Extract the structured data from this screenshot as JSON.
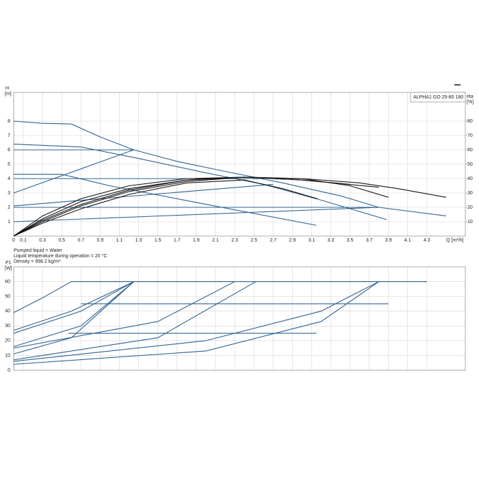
{
  "chart_data": [
    {
      "type": "line",
      "title": "ALPHA1 GO 25-80 180",
      "ylabel": "H",
      "yunit": "[m]",
      "y2label": "eta",
      "y2unit": "[%]",
      "xlabel": "Q [m³/h]",
      "xlim": [
        0,
        4.7
      ],
      "xticks": [
        0,
        0.1,
        0.3,
        0.5,
        0.7,
        0.9,
        1.1,
        1.3,
        1.5,
        1.7,
        1.9,
        2.1,
        2.3,
        2.5,
        2.7,
        2.9,
        3.1,
        3.3,
        3.5,
        3.7,
        3.9,
        4.1,
        4.3
      ],
      "ylim": [
        0,
        10
      ],
      "yticks": [
        1,
        2,
        3,
        4,
        5,
        6,
        7,
        8
      ],
      "y2lim": [
        0,
        100
      ],
      "y2ticks": [
        10,
        20,
        30,
        40,
        50,
        60,
        70,
        80
      ],
      "grid": true,
      "notes": [
        "Pumped liquid = Water",
        "Liquid temperature during operation = 20 °C",
        "Density = 998.2 kg/m³"
      ],
      "series": [
        {
          "color": "#2b5f8f",
          "x": [
            0,
            0.3,
            0.6,
            0.9,
            1.25,
            1.7,
            2.2,
            2.8,
            3.4,
            3.8,
            4.5
          ],
          "values": [
            8,
            7.85,
            7.8,
            6.9,
            6.0,
            5.2,
            4.5,
            3.7,
            2.8,
            2.0,
            1.4
          ]
        },
        {
          "color": "#2b5f8f",
          "x": [
            0,
            0.7,
            1.3,
            2.0,
            2.6,
            3.2,
            3.88
          ],
          "values": [
            6.4,
            6.2,
            5.4,
            4.4,
            3.6,
            2.5,
            1.15
          ]
        },
        {
          "color": "#2b5f8f",
          "x": [
            0,
            0.5,
            1.0,
            1.7,
            2.4,
            3.15
          ],
          "values": [
            4.3,
            4.3,
            3.5,
            2.6,
            1.7,
            0.75
          ]
        },
        {
          "color": "#2b5f8f",
          "x": [
            0,
            1.25
          ],
          "values": [
            6,
            6
          ]
        },
        {
          "color": "#2b5f8f",
          "x": [
            0,
            1.25
          ],
          "values": [
            3,
            6
          ]
        },
        {
          "color": "#2b5f8f",
          "x": [
            0,
            2.6
          ],
          "values": [
            4,
            4
          ]
        },
        {
          "color": "#2b5f8f",
          "x": [
            0,
            2.7
          ],
          "values": [
            2.1,
            3.6
          ]
        },
        {
          "color": "#2b5f8f",
          "x": [
            0,
            3.8
          ],
          "values": [
            2,
            2
          ]
        },
        {
          "color": "#2b5f8f",
          "x": [
            0,
            3.8
          ],
          "values": [
            1,
            2
          ]
        },
        {
          "color": "#111111",
          "axis": "y2",
          "x": [
            0,
            0.3,
            0.7,
            1.2,
            1.8,
            2.4,
            3.0,
            3.6,
            4.0,
            4.5
          ],
          "values": [
            0,
            12,
            24,
            33,
            39,
            41,
            40,
            37,
            33,
            27
          ]
        },
        {
          "color": "#111111",
          "axis": "y2",
          "x": [
            0,
            0.3,
            0.7,
            1.2,
            1.8,
            2.4,
            3.0,
            3.5,
            3.9
          ],
          "values": [
            0,
            10,
            21,
            31,
            38,
            41,
            40,
            35,
            27
          ]
        },
        {
          "color": "#111111",
          "axis": "y2",
          "x": [
            0,
            0.3,
            0.7,
            1.2,
            1.8,
            2.4,
            3.0,
            3.8
          ],
          "values": [
            0,
            14,
            26,
            35,
            40,
            41,
            39,
            34
          ]
        },
        {
          "color": "#111111",
          "axis": "y2",
          "x": [
            0,
            0.3,
            0.7,
            1.2,
            1.8,
            2.4,
            2.8,
            3.16
          ],
          "values": [
            0,
            9,
            19,
            29,
            37,
            39,
            33,
            26
          ]
        },
        {
          "color": "#111111",
          "axis": "y2",
          "x": [
            0,
            0.3,
            0.7,
            1.2,
            1.8,
            2.4,
            3.0,
            3.5
          ],
          "values": [
            0,
            11,
            22,
            32,
            39,
            41,
            39,
            36
          ]
        }
      ]
    },
    {
      "type": "line",
      "ylabel": "P1",
      "yunit": "[W]",
      "xlim": [
        0,
        4.7
      ],
      "ylim": [
        0,
        70
      ],
      "yticks": [
        0,
        10,
        20,
        30,
        40,
        50,
        60
      ],
      "grid": true,
      "series": [
        {
          "color": "#2b5f8f",
          "x": [
            0,
            0.3,
            0.6,
            4.3
          ],
          "values": [
            39,
            49,
            60,
            60
          ]
        },
        {
          "color": "#2b5f8f",
          "x": [
            0,
            0.6,
            1.25
          ],
          "values": [
            27,
            40,
            60
          ]
        },
        {
          "color": "#2b5f8f",
          "x": [
            0,
            0.7,
            1.25
          ],
          "values": [
            25,
            40,
            60
          ]
        },
        {
          "color": "#2b5f8f",
          "x": [
            0,
            0.7,
            1.25
          ],
          "values": [
            16,
            30,
            60
          ]
        },
        {
          "color": "#2b5f8f",
          "x": [
            0,
            0.6,
            1.25
          ],
          "values": [
            11,
            22,
            60
          ]
        },
        {
          "color": "#2b5f8f",
          "x": [
            0,
            1.5,
            2.3
          ],
          "values": [
            15,
            33,
            60
          ]
        },
        {
          "color": "#2b5f8f",
          "x": [
            0,
            1.5,
            2.52
          ],
          "values": [
            7,
            22,
            60
          ]
        },
        {
          "color": "#2b5f8f",
          "x": [
            0,
            2.0,
            3.2,
            3.8
          ],
          "values": [
            6,
            20,
            40,
            60
          ]
        },
        {
          "color": "#2b5f8f",
          "x": [
            0,
            2.0,
            3.2,
            3.8
          ],
          "values": [
            4,
            13,
            33,
            60
          ]
        },
        {
          "color": "#2b5f8f",
          "x": [
            0.7,
            3.9
          ],
          "values": [
            45,
            45
          ]
        },
        {
          "color": "#2b5f8f",
          "x": [
            0.57,
            3.15
          ],
          "values": [
            25,
            25
          ]
        }
      ]
    }
  ]
}
